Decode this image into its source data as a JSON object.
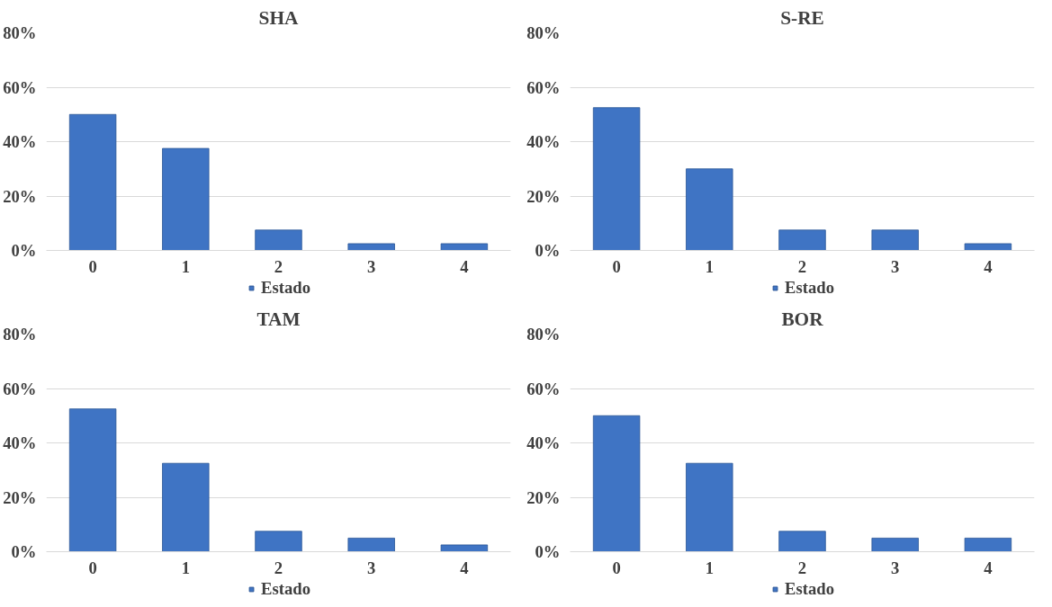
{
  "chart_data": [
    {
      "type": "bar",
      "title": "SHA",
      "categories": [
        "0",
        "1",
        "2",
        "3",
        "4"
      ],
      "series": [
        {
          "name": "Estado",
          "color": "#3f74c4",
          "values": [
            50,
            37.5,
            7.5,
            2.5,
            2.5
          ]
        }
      ],
      "ylim": [
        0,
        80
      ],
      "yticks": [
        {
          "value": 0,
          "label": "0%"
        },
        {
          "value": 20,
          "label": "20%"
        },
        {
          "value": 40,
          "label": "40%"
        },
        {
          "value": 60,
          "label": "60%"
        },
        {
          "value": 80,
          "label": "80%"
        }
      ],
      "grid": "y",
      "legend": "bottom"
    },
    {
      "type": "bar",
      "title": "S-RE",
      "categories": [
        "0",
        "1",
        "2",
        "3",
        "4"
      ],
      "series": [
        {
          "name": "Estado",
          "color": "#3f74c4",
          "values": [
            52.5,
            30,
            7.5,
            7.5,
            2.5
          ]
        }
      ],
      "ylim": [
        0,
        80
      ],
      "yticks": [
        {
          "value": 0,
          "label": "0%"
        },
        {
          "value": 20,
          "label": "20%"
        },
        {
          "value": 40,
          "label": "40%"
        },
        {
          "value": 60,
          "label": "60%"
        },
        {
          "value": 80,
          "label": "80%"
        }
      ],
      "grid": "y",
      "legend": "bottom"
    },
    {
      "type": "bar",
      "title": "TAM",
      "categories": [
        "0",
        "1",
        "2",
        "3",
        "4"
      ],
      "series": [
        {
          "name": "Estado",
          "color": "#3f74c4",
          "values": [
            52.5,
            32.5,
            7.5,
            5,
            2.5
          ]
        }
      ],
      "ylim": [
        0,
        80
      ],
      "yticks": [
        {
          "value": 0,
          "label": "0%"
        },
        {
          "value": 20,
          "label": "20%"
        },
        {
          "value": 40,
          "label": "40%"
        },
        {
          "value": 60,
          "label": "60%"
        },
        {
          "value": 80,
          "label": "80%"
        }
      ],
      "grid": "y",
      "legend": "bottom"
    },
    {
      "type": "bar",
      "title": "BOR",
      "categories": [
        "0",
        "1",
        "2",
        "3",
        "4"
      ],
      "series": [
        {
          "name": "Estado",
          "color": "#3f74c4",
          "values": [
            50,
            32.5,
            7.5,
            5,
            5
          ]
        }
      ],
      "ylim": [
        0,
        80
      ],
      "yticks": [
        {
          "value": 0,
          "label": "0%"
        },
        {
          "value": 20,
          "label": "20%"
        },
        {
          "value": 40,
          "label": "40%"
        },
        {
          "value": 60,
          "label": "60%"
        },
        {
          "value": 80,
          "label": "80%"
        }
      ],
      "grid": "y",
      "legend": "bottom"
    }
  ]
}
